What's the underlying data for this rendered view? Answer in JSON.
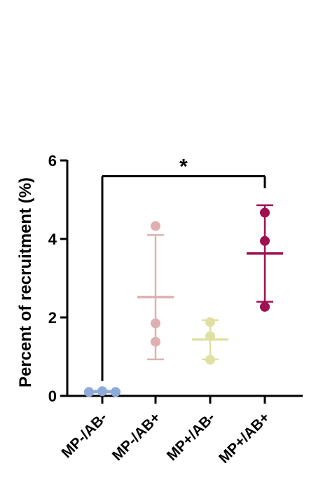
{
  "chart_data": {
    "type": "scatter",
    "title": "",
    "xlabel": "",
    "ylabel": "Percent of recruitment (%)",
    "ylim": [
      0,
      6
    ],
    "yticks": [
      0,
      2,
      4,
      6
    ],
    "grid": false,
    "legend": "none",
    "categories": [
      "MP-/AB-",
      "MP-/AB+",
      "MP+/AB-",
      "MP+/AB+"
    ],
    "series": [
      {
        "color": "#8eaad6",
        "points": [
          0.1,
          0.12,
          0.1
        ],
        "mean": 0.11,
        "err_low": 0.09,
        "err_high": 0.13
      },
      {
        "color": "#e0b0b0",
        "points": [
          4.33,
          1.85,
          1.38
        ],
        "mean": 2.52,
        "err_low": 0.93,
        "err_high": 4.1
      },
      {
        "color": "#dfe0a2",
        "points": [
          1.88,
          1.52,
          0.92
        ],
        "mean": 1.44,
        "err_low": 0.93,
        "err_high": 1.93
      },
      {
        "color": "#9e1050",
        "points": [
          4.67,
          3.95,
          2.27
        ],
        "mean": 3.63,
        "err_low": 2.4,
        "err_high": 4.86
      }
    ],
    "significance": {
      "from": "MP-/AB-",
      "to": "MP+/AB+",
      "label": "*",
      "y": 5.6
    }
  }
}
